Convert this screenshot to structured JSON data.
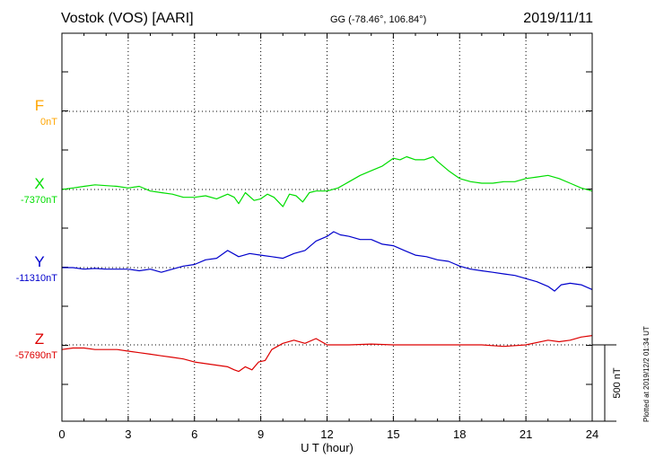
{
  "header": {
    "station": "Vostok (VOS)  [AARI]",
    "coords": "GG (-78.46°, 106.84°)",
    "date": "2019/11/11"
  },
  "plotted_note": "Plotted at 2019/12/2 01:34 UT",
  "scale_bar_label": "500 nT",
  "colors": {
    "F": "#ffa500",
    "X": "#00dd00",
    "Y": "#0000cc",
    "Z": "#dd0000",
    "grid": "#000000"
  },
  "chart_data": {
    "type": "line",
    "xlabel": "U T (hour)",
    "xlim": [
      0,
      24
    ],
    "xticks": [
      "0",
      "3",
      "6",
      "9",
      "12",
      "15",
      "18",
      "21",
      "24"
    ],
    "series": [
      {
        "name": "F",
        "baseline_label": "0nT",
        "color": "#ffa500",
        "x": [],
        "y": []
      },
      {
        "name": "X",
        "baseline_label": "-7370nT",
        "color": "#00dd00",
        "baseline": -7370,
        "x": [
          0,
          0.5,
          1,
          1.5,
          2,
          2.5,
          3,
          3.5,
          4,
          4.5,
          5,
          5.5,
          6,
          6.5,
          7,
          7.5,
          7.8,
          8,
          8.3,
          8.7,
          9,
          9.3,
          9.6,
          10,
          10.3,
          10.6,
          10.9,
          11.2,
          11.5,
          12,
          12.5,
          13,
          13.5,
          14,
          14.5,
          15,
          15.3,
          15.6,
          16,
          16.4,
          16.8,
          17,
          17.5,
          18,
          18.5,
          19,
          19.5,
          20,
          20.5,
          21,
          21.5,
          22,
          22.5,
          23,
          23.5,
          24
        ],
        "y": [
          -7370,
          -7360,
          -7350,
          -7340,
          -7345,
          -7350,
          -7360,
          -7350,
          -7380,
          -7390,
          -7400,
          -7420,
          -7420,
          -7410,
          -7430,
          -7400,
          -7420,
          -7460,
          -7390,
          -7440,
          -7430,
          -7400,
          -7420,
          -7480,
          -7400,
          -7410,
          -7450,
          -7390,
          -7380,
          -7380,
          -7360,
          -7320,
          -7280,
          -7250,
          -7220,
          -7170,
          -7180,
          -7160,
          -7180,
          -7180,
          -7160,
          -7190,
          -7250,
          -7300,
          -7320,
          -7330,
          -7330,
          -7320,
          -7320,
          -7300,
          -7290,
          -7280,
          -7300,
          -7330,
          -7360,
          -7380
        ]
      },
      {
        "name": "Y",
        "baseline_label": "-11310nT",
        "color": "#0000cc",
        "baseline": -11310,
        "x": [
          0,
          0.5,
          1,
          1.5,
          2,
          2.5,
          3,
          3.5,
          4,
          4.5,
          5,
          5.5,
          6,
          6.5,
          7,
          7.5,
          8,
          8.5,
          9,
          9.5,
          10,
          10.5,
          11,
          11.5,
          12,
          12.3,
          12.6,
          13,
          13.5,
          14,
          14.5,
          15,
          15.5,
          16,
          16.5,
          17,
          17.5,
          18,
          18.5,
          19,
          19.5,
          20,
          20.5,
          21,
          21.5,
          22,
          22.3,
          22.6,
          23,
          23.5,
          24
        ],
        "y": [
          -11310,
          -11310,
          -11320,
          -11315,
          -11320,
          -11320,
          -11320,
          -11330,
          -11320,
          -11340,
          -11320,
          -11300,
          -11290,
          -11260,
          -11250,
          -11200,
          -11240,
          -11220,
          -11230,
          -11240,
          -11250,
          -11220,
          -11200,
          -11140,
          -11110,
          -11080,
          -11100,
          -11110,
          -11130,
          -11130,
          -11160,
          -11170,
          -11200,
          -11230,
          -11240,
          -11260,
          -11270,
          -11300,
          -11320,
          -11330,
          -11340,
          -11350,
          -11360,
          -11380,
          -11400,
          -11430,
          -11460,
          -11420,
          -11410,
          -11420,
          -11450
        ]
      },
      {
        "name": "Z",
        "baseline_label": "-57690nT",
        "color": "#dd0000",
        "baseline": -57690,
        "x": [
          0,
          0.5,
          1,
          1.5,
          2,
          2.5,
          3,
          3.5,
          4,
          4.5,
          5,
          5.5,
          6,
          6.5,
          7,
          7.5,
          7.8,
          8,
          8.3,
          8.6,
          8.9,
          9.2,
          9.5,
          10,
          10.5,
          11,
          11.5,
          12,
          13,
          14,
          15,
          16,
          17,
          18,
          19,
          20,
          21,
          22,
          22.5,
          23,
          23.5,
          24
        ],
        "y": [
          -57720,
          -57710,
          -57710,
          -57720,
          -57720,
          -57720,
          -57730,
          -57740,
          -57750,
          -57760,
          -57770,
          -57780,
          -57800,
          -57810,
          -57820,
          -57830,
          -57850,
          -57860,
          -57830,
          -57850,
          -57800,
          -57790,
          -57720,
          -57680,
          -57660,
          -57680,
          -57650,
          -57690,
          -57690,
          -57685,
          -57690,
          -57690,
          -57690,
          -57690,
          -57690,
          -57700,
          -57690,
          -57660,
          -57670,
          -57660,
          -57640,
          -57630
        ]
      }
    ]
  }
}
